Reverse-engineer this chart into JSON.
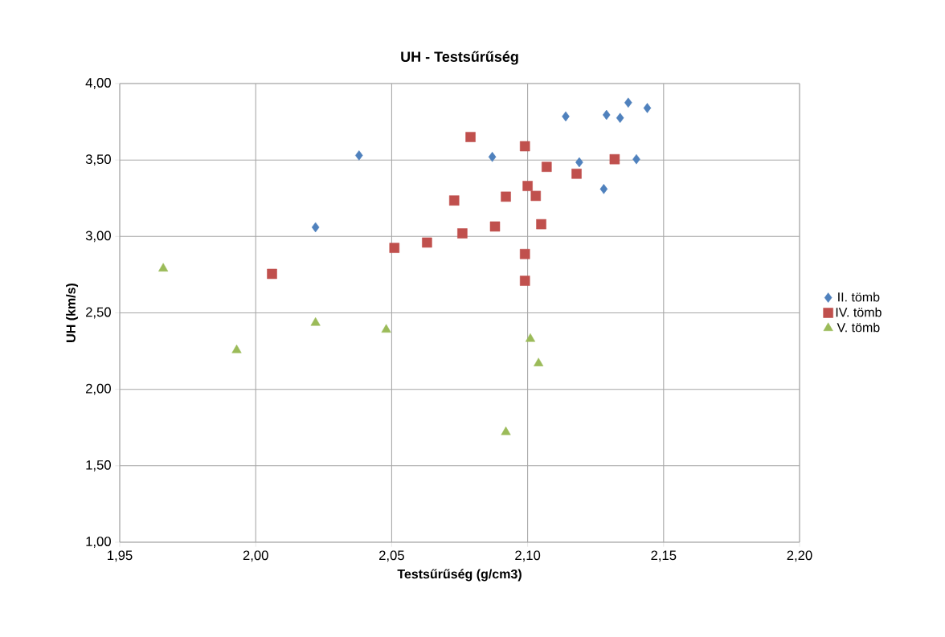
{
  "chart_data": {
    "type": "scatter",
    "title": "UH - Testsűrűség",
    "xlabel": "Testsűrűség (g/cm3)",
    "ylabel": "UH (km/s)",
    "xlim": [
      1.95,
      2.2
    ],
    "ylim": [
      1.0,
      4.0
    ],
    "xticks": [
      {
        "value": 1.95,
        "label": "1,95"
      },
      {
        "value": 2.0,
        "label": "2,00"
      },
      {
        "value": 2.05,
        "label": "2,05"
      },
      {
        "value": 2.1,
        "label": "2,10"
      },
      {
        "value": 2.15,
        "label": "2,15"
      },
      {
        "value": 2.2,
        "label": "2,20"
      }
    ],
    "yticks": [
      {
        "value": 1.0,
        "label": "1,00"
      },
      {
        "value": 1.5,
        "label": "1,50"
      },
      {
        "value": 2.0,
        "label": "2,00"
      },
      {
        "value": 2.5,
        "label": "2,50"
      },
      {
        "value": 3.0,
        "label": "3,00"
      },
      {
        "value": 3.5,
        "label": "3,50"
      },
      {
        "value": 4.0,
        "label": "4,00"
      }
    ],
    "grid": true,
    "legend": "right",
    "series": [
      {
        "name": "II. tömb",
        "color": "#4f81bd",
        "marker": "diamond",
        "x": [
          2.038,
          2.022,
          2.087,
          2.114,
          2.119,
          2.129,
          2.134,
          2.137,
          2.144,
          2.14,
          2.128
        ],
        "values": [
          3.53,
          3.06,
          3.52,
          3.785,
          3.485,
          3.795,
          3.775,
          3.875,
          3.84,
          3.505,
          3.31
        ]
      },
      {
        "name": "IV. tömb",
        "color": "#c0504d",
        "marker": "square",
        "x": [
          2.006,
          2.051,
          2.063,
          2.073,
          2.076,
          2.079,
          2.088,
          2.092,
          2.099,
          2.1,
          2.099,
          2.099,
          2.103,
          2.105,
          2.107,
          2.118,
          2.132
        ],
        "values": [
          2.755,
          2.925,
          2.96,
          3.235,
          3.02,
          3.65,
          3.065,
          3.26,
          3.59,
          3.33,
          2.885,
          2.71,
          3.265,
          3.08,
          3.455,
          3.41,
          3.505
        ]
      },
      {
        "name": "V. tömb",
        "color": "#9bbb59",
        "marker": "triangle",
        "x": [
          1.966,
          1.993,
          2.022,
          2.048,
          2.092,
          2.101,
          2.104
        ],
        "values": [
          2.79,
          2.256,
          2.435,
          2.39,
          1.72,
          2.33,
          2.17
        ]
      }
    ]
  }
}
